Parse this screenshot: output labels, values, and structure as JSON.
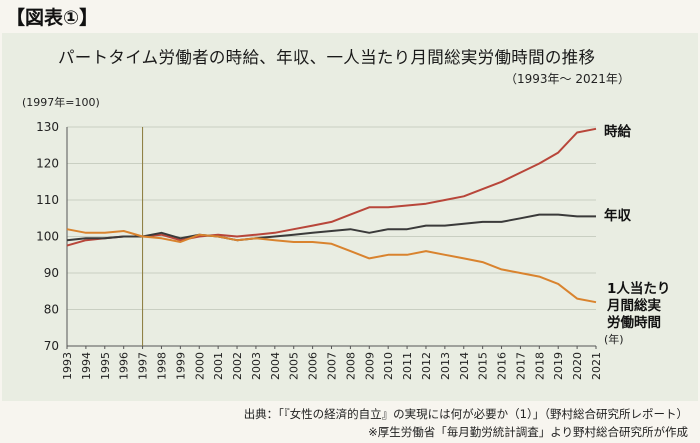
{
  "figure_label": "【図表①】",
  "title": "パートタイム労働者の時給、年収、一人当たり月間総実労働時間の推移",
  "subtitle": "（1993年～ 2021年）",
  "unit_note": "(1997年=100)",
  "x_unit_note": "(年)",
  "source_lines": [
    "出典：｢『女性の経済的自立』の実現には何が必要か（1）｣（野村総合研究所レポート）",
    "※厚生労働省「毎月勤労統計調査」より野村総合研究所が作成"
  ],
  "colors": {
    "hourly_wage": "#b8463a",
    "annual_income": "#3a3a3a",
    "hours": "#d9832e",
    "grid": "#c9cfc2",
    "reference_line": "#8a7a3a"
  },
  "chart_data": {
    "type": "line",
    "x": [
      1993,
      1994,
      1995,
      1996,
      1997,
      1998,
      1999,
      2000,
      2001,
      2002,
      2003,
      2004,
      2005,
      2006,
      2007,
      2008,
      2009,
      2010,
      2011,
      2012,
      2013,
      2014,
      2015,
      2016,
      2017,
      2018,
      2019,
      2020,
      2021
    ],
    "ylim": [
      70,
      130
    ],
    "yticks": [
      70,
      80,
      90,
      100,
      110,
      120,
      130
    ],
    "reference_x": 1997,
    "grid": true,
    "series": [
      {
        "name": "時給",
        "label_lines": [
          "時給"
        ],
        "color_key": "hourly_wage",
        "values": [
          97.5,
          99,
          99.5,
          100,
          100,
          100.5,
          99,
          100,
          100.5,
          100,
          100.5,
          101,
          102,
          103,
          104,
          106,
          108,
          108,
          108.5,
          109,
          110,
          111,
          113,
          115,
          117.5,
          120,
          123,
          128.5,
          129.5
        ]
      },
      {
        "name": "年収",
        "label_lines": [
          "年収"
        ],
        "color_key": "annual_income",
        "values": [
          99,
          99.5,
          99.5,
          100,
          100,
          101,
          99.5,
          100.5,
          100,
          99,
          99.5,
          100,
          100.5,
          101,
          101.5,
          102,
          101,
          102,
          102,
          103,
          103,
          103.5,
          104,
          104,
          105,
          106,
          106,
          105.5,
          105.5
        ]
      },
      {
        "name": "1人当たり月間総実労働時間",
        "label_lines": [
          "1人当たり",
          "月間総実",
          "労働時間"
        ],
        "color_key": "hours",
        "values": [
          102,
          101,
          101,
          101.5,
          100,
          99.5,
          98.5,
          100.5,
          100,
          99,
          99.5,
          99,
          98.5,
          98.5,
          98,
          96,
          94,
          95,
          95,
          96,
          95,
          94,
          93,
          91,
          90,
          89,
          87,
          83,
          82
        ]
      }
    ]
  }
}
